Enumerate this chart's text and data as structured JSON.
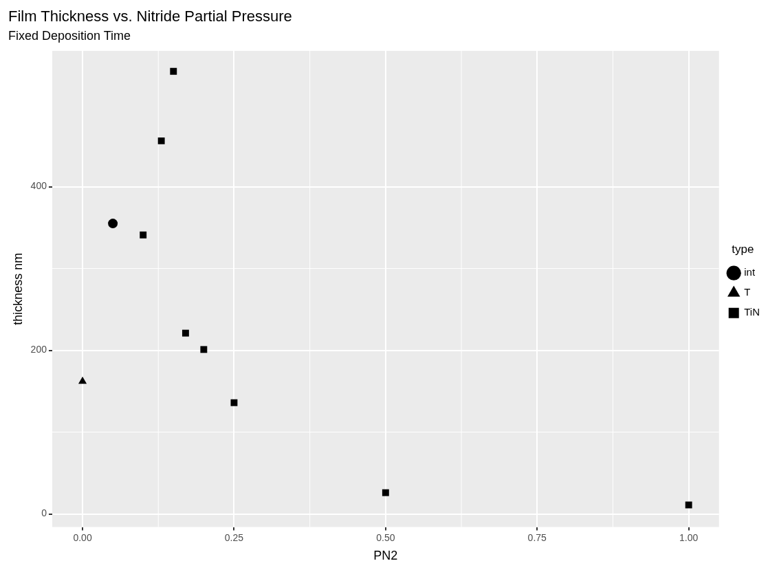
{
  "chart_data": {
    "type": "scatter",
    "title": "Film Thickness vs. Nitride Partial Pressure",
    "subtitle": "Fixed Deposition Time",
    "xlabel": "PN2",
    "ylabel": "thickness nm",
    "legend_title": "type",
    "legend": "right",
    "grid": true,
    "xlim": [
      -0.05,
      1.05
    ],
    "xticks": [
      {
        "value": 0,
        "label": "0.00"
      },
      {
        "value": 0.25,
        "label": "0.25"
      },
      {
        "value": 0.5,
        "label": "0.50"
      },
      {
        "value": 0.75,
        "label": "0.75"
      },
      {
        "value": 1,
        "label": "1.00"
      }
    ],
    "ylim": [
      -16,
      566
    ],
    "yticks": [
      0,
      200,
      400
    ],
    "series": [
      {
        "name": "int",
        "color": "#000000",
        "marker": "circle",
        "x": [
          0.05
        ],
        "values": [
          355
        ]
      },
      {
        "name": "T",
        "color": "#000000",
        "marker": "triangle",
        "x": [
          0
        ],
        "values": [
          162
        ]
      },
      {
        "name": "TiN",
        "color": "#000000",
        "marker": "square",
        "x": [
          0.1,
          0.13,
          0.15,
          0.17,
          0.2,
          0.25,
          0.5,
          1
        ],
        "values": [
          341,
          456,
          541,
          221,
          201,
          136,
          26,
          11
        ]
      }
    ]
  }
}
